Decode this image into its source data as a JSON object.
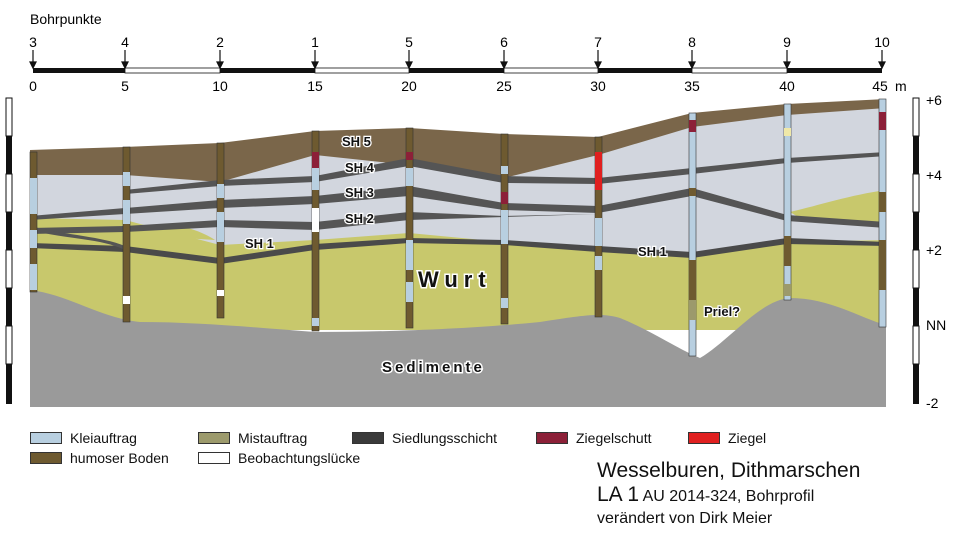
{
  "header": {
    "title": "Bohrpunkte"
  },
  "bore_ids": [
    "3",
    "4",
    "2",
    "1",
    "5",
    "6",
    "7",
    "8",
    "9",
    "10"
  ],
  "distance_scale": {
    "ticks": [
      "0",
      "5",
      "10",
      "15",
      "20",
      "25",
      "30",
      "35",
      "40",
      "45"
    ],
    "unit_label": "m"
  },
  "elevation_scale": {
    "ticks": [
      "+6",
      "+4",
      "+2",
      "NN",
      "-2"
    ]
  },
  "layer_labels": {
    "sh5": "SH 5",
    "sh4": "SH 4",
    "sh3": "SH 3",
    "sh2": "SH 2",
    "sh1_left": "SH 1",
    "sh1_right": "SH 1",
    "wurt": "Wurt",
    "priel": "Priel?",
    "sedimente": "Sedimente"
  },
  "legend": [
    {
      "label": "Kleiauftrag",
      "color": "#b8cfe0"
    },
    {
      "label": "Mistauftrag",
      "color": "#9c9a6c"
    },
    {
      "label": "Siedlungsschicht",
      "color": "#3a3a3a"
    },
    {
      "label": "Ziegelschutt",
      "color": "#8c2038"
    },
    {
      "label": "Ziegel",
      "color": "#e02020"
    },
    {
      "label": "humoser Boden",
      "color": "#6e5a30"
    },
    {
      "label": "Beobachtungslücke",
      "color": "#ffffff"
    }
  ],
  "caption": {
    "title": "Wesselburen, Dithmarschen",
    "id": "LA 1",
    "ref": "AU 2014-324, Bohrprofil",
    "credit": "verändert von Dirk Meier"
  }
}
